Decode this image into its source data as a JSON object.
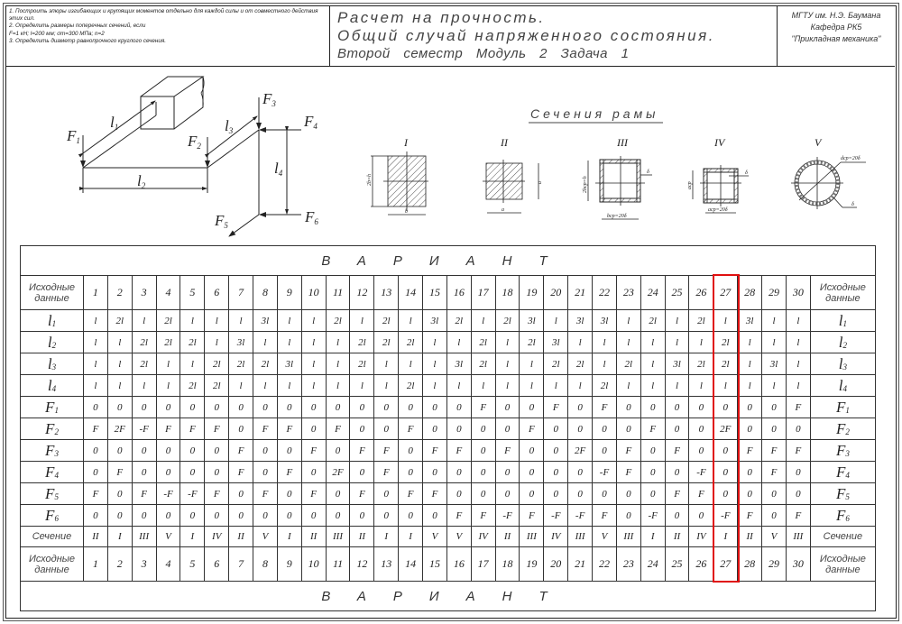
{
  "header": {
    "tasks": [
      "1. Построить эпюры изгибающих и крутящих моментов отдельно для каждой силы и от совместного действия этих сил.",
      "2. Определить размеры поперечных сечений, если",
      "F=1 кН; l=200 мм; σт=300 МПа; n=2",
      "3. Определить диаметр равнопрочного круглого сечения."
    ],
    "title_line1": "Расчет на прочность.",
    "title_line2": "Общий случай напряженного состояния.",
    "title_line3": "Второй семестр   Модуль 2   Задача 1",
    "org_line1": "МГТУ им. Н.Э. Баумана",
    "org_line2": "Кафедра РК5",
    "org_line3": "\"Прикладная механика\""
  },
  "scheme": {
    "labels": {
      "F1": {
        "main": "F",
        "sub": "1"
      },
      "F2": {
        "main": "F",
        "sub": "2"
      },
      "F3": {
        "main": "F",
        "sub": "3"
      },
      "F4": {
        "main": "F",
        "sub": "4"
      },
      "F5": {
        "main": "F",
        "sub": "5"
      },
      "F6": {
        "main": "F",
        "sub": "6"
      },
      "l1": {
        "main": "l",
        "sub": "1"
      },
      "l2": {
        "main": "l",
        "sub": "2"
      },
      "l3": {
        "main": "l",
        "sub": "3"
      },
      "l4": {
        "main": "l",
        "sub": "4"
      }
    }
  },
  "sections": {
    "title": "Сечения рамы",
    "items": [
      {
        "numeral": "I",
        "dims": [
          "2b=h",
          "b"
        ]
      },
      {
        "numeral": "II",
        "dims": [
          "a",
          "a"
        ]
      },
      {
        "numeral": "III",
        "dims": [
          "2bср=h",
          "bср=20δ",
          "δ"
        ]
      },
      {
        "numeral": "IV",
        "dims": [
          "aср",
          "aср=20δ",
          "δ"
        ]
      },
      {
        "numeral": "V",
        "dims": [
          "dср=20δ",
          "δ"
        ]
      }
    ]
  },
  "table": {
    "banner": "ВАРИАНТ",
    "header_label": "Исходные данные",
    "variants": [
      "1",
      "2",
      "3",
      "4",
      "5",
      "6",
      "7",
      "8",
      "9",
      "10",
      "11",
      "12",
      "13",
      "14",
      "15",
      "16",
      "17",
      "18",
      "19",
      "20",
      "21",
      "22",
      "23",
      "24",
      "25",
      "26",
      "27",
      "28",
      "29",
      "30"
    ],
    "highlighted_variant": "27",
    "highlight_color": "#e01010",
    "rows": [
      {
        "main": "l",
        "sub": "1",
        "values": [
          "l",
          "2l",
          "l",
          "2l",
          "l",
          "l",
          "l",
          "3l",
          "l",
          "l",
          "2l",
          "l",
          "2l",
          "l",
          "3l",
          "2l",
          "l",
          "2l",
          "3l",
          "l",
          "3l",
          "3l",
          "l",
          "2l",
          "l",
          "2l",
          "l",
          "3l",
          "l",
          "l"
        ]
      },
      {
        "main": "l",
        "sub": "2",
        "values": [
          "l",
          "l",
          "2l",
          "2l",
          "2l",
          "l",
          "3l",
          "l",
          "l",
          "l",
          "l",
          "2l",
          "2l",
          "2l",
          "l",
          "l",
          "2l",
          "l",
          "2l",
          "3l",
          "l",
          "l",
          "l",
          "l",
          "l",
          "l",
          "2l",
          "l",
          "l",
          "l"
        ]
      },
      {
        "main": "l",
        "sub": "3",
        "values": [
          "l",
          "l",
          "2l",
          "l",
          "l",
          "2l",
          "2l",
          "2l",
          "3l",
          "l",
          "l",
          "2l",
          "l",
          "l",
          "l",
          "3l",
          "2l",
          "l",
          "l",
          "2l",
          "2l",
          "l",
          "2l",
          "l",
          "3l",
          "2l",
          "2l",
          "l",
          "3l",
          "l"
        ]
      },
      {
        "main": "l",
        "sub": "4",
        "values": [
          "l",
          "l",
          "l",
          "l",
          "2l",
          "2l",
          "l",
          "l",
          "l",
          "l",
          "l",
          "l",
          "l",
          "2l",
          "l",
          "l",
          "l",
          "l",
          "l",
          "l",
          "l",
          "2l",
          "l",
          "l",
          "l",
          "l",
          "l",
          "l",
          "l",
          "l"
        ]
      },
      {
        "main": "F",
        "sub": "1",
        "values": [
          "0",
          "0",
          "0",
          "0",
          "0",
          "0",
          "0",
          "0",
          "0",
          "0",
          "0",
          "0",
          "0",
          "0",
          "0",
          "0",
          "F",
          "0",
          "0",
          "F",
          "0",
          "F",
          "0",
          "0",
          "0",
          "0",
          "0",
          "0",
          "0",
          "F"
        ]
      },
      {
        "main": "F",
        "sub": "2",
        "values": [
          "F",
          "2F",
          "-F",
          "F",
          "F",
          "F",
          "0",
          "F",
          "F",
          "0",
          "F",
          "0",
          "0",
          "F",
          "0",
          "0",
          "0",
          "0",
          "F",
          "0",
          "0",
          "0",
          "0",
          "F",
          "0",
          "0",
          "2F",
          "0",
          "0",
          "0"
        ]
      },
      {
        "main": "F",
        "sub": "3",
        "values": [
          "0",
          "0",
          "0",
          "0",
          "0",
          "0",
          "F",
          "0",
          "0",
          "F",
          "0",
          "F",
          "F",
          "0",
          "F",
          "F",
          "0",
          "F",
          "0",
          "0",
          "2F",
          "0",
          "F",
          "0",
          "F",
          "0",
          "0",
          "F",
          "F",
          "F"
        ]
      },
      {
        "main": "F",
        "sub": "4",
        "values": [
          "0",
          "F",
          "0",
          "0",
          "0",
          "0",
          "F",
          "0",
          "F",
          "0",
          "2F",
          "0",
          "F",
          "0",
          "0",
          "0",
          "0",
          "0",
          "0",
          "0",
          "0",
          "-F",
          "F",
          "0",
          "0",
          "-F",
          "0",
          "0",
          "F",
          "0"
        ]
      },
      {
        "main": "F",
        "sub": "5",
        "values": [
          "F",
          "0",
          "F",
          "-F",
          "-F",
          "F",
          "0",
          "F",
          "0",
          "F",
          "0",
          "F",
          "0",
          "F",
          "F",
          "0",
          "0",
          "0",
          "0",
          "0",
          "0",
          "0",
          "0",
          "0",
          "F",
          "F",
          "0",
          "0",
          "0",
          "0"
        ]
      },
      {
        "main": "F",
        "sub": "6",
        "values": [
          "0",
          "0",
          "0",
          "0",
          "0",
          "0",
          "0",
          "0",
          "0",
          "0",
          "0",
          "0",
          "0",
          "0",
          "0",
          "F",
          "F",
          "-F",
          "F",
          "-F",
          "-F",
          "F",
          "0",
          "-F",
          "0",
          "0",
          "-F",
          "F",
          "0",
          "F"
        ]
      }
    ],
    "section_label": "Сечение",
    "section_values": [
      "II",
      "I",
      "III",
      "V",
      "I",
      "IV",
      "II",
      "V",
      "I",
      "II",
      "III",
      "II",
      "I",
      "I",
      "V",
      "V",
      "IV",
      "II",
      "III",
      "IV",
      "III",
      "V",
      "III",
      "I",
      "II",
      "IV",
      "I",
      "II",
      "V",
      "III"
    ]
  }
}
